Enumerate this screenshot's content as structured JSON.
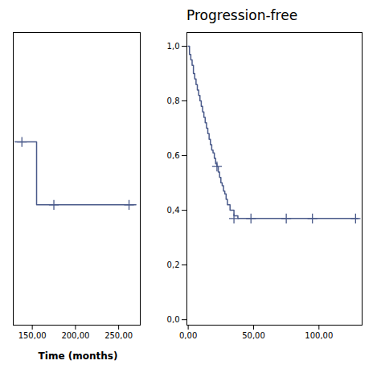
{
  "chart_data": [
    {
      "type": "line",
      "xlabel": "Time (months)",
      "xlim": [
        128,
        275
      ],
      "ylim": [
        -0.02,
        1.05
      ],
      "xticks": [
        {
          "value": 150,
          "label": "150,00"
        },
        {
          "value": 200,
          "label": "200,00"
        },
        {
          "value": 250,
          "label": "250,00"
        }
      ],
      "tick_labels": "x",
      "series": [
        {
          "type": "step",
          "color": "#4a5a8a",
          "x": [
            130,
            155,
            155,
            270
          ],
          "values": [
            0.65,
            0.65,
            0.42,
            0.42
          ]
        },
        {
          "type": "scatter",
          "marker": "plus",
          "color": "#4a5a8a",
          "x": [
            138,
            175,
            262
          ],
          "values": [
            0.65,
            0.42,
            0.42
          ]
        }
      ]
    },
    {
      "type": "line",
      "title": "Progression-free",
      "xlim": [
        -1,
        133
      ],
      "ylim": [
        -0.02,
        1.05
      ],
      "xticks": [
        {
          "value": 0,
          "label": "0,00"
        },
        {
          "value": 50,
          "label": "50,00"
        },
        {
          "value": 100,
          "label": "100,00"
        }
      ],
      "yticks": [
        {
          "value": 0.0,
          "label": "0,0"
        },
        {
          "value": 0.2,
          "label": "0,2"
        },
        {
          "value": 0.4,
          "label": "0,4"
        },
        {
          "value": 0.6,
          "label": "0,6"
        },
        {
          "value": 0.8,
          "label": "0,8"
        },
        {
          "value": 1.0,
          "label": "1,0"
        }
      ],
      "series": [
        {
          "type": "step",
          "color": "#4a5a8a",
          "x": [
            0,
            1,
            2,
            3,
            4,
            5,
            6,
            7,
            8,
            9,
            10,
            11,
            12,
            13,
            14,
            15,
            16,
            17,
            18,
            19,
            20,
            21,
            22,
            23,
            24,
            25,
            26,
            27,
            28,
            29,
            30,
            32,
            35,
            38,
            40,
            43,
            45,
            130
          ],
          "values": [
            1.0,
            0.97,
            0.95,
            0.93,
            0.9,
            0.88,
            0.86,
            0.84,
            0.82,
            0.8,
            0.78,
            0.76,
            0.74,
            0.72,
            0.7,
            0.68,
            0.66,
            0.64,
            0.62,
            0.61,
            0.59,
            0.57,
            0.56,
            0.54,
            0.52,
            0.5,
            0.49,
            0.47,
            0.46,
            0.44,
            0.42,
            0.4,
            0.38,
            0.37,
            0.37,
            0.37,
            0.37,
            0.37
          ]
        },
        {
          "type": "scatter",
          "marker": "plus",
          "color": "#4a5a8a",
          "x": [
            22,
            35,
            48,
            75,
            95,
            128
          ],
          "values": [
            0.56,
            0.37,
            0.37,
            0.37,
            0.37,
            0.37
          ]
        }
      ]
    }
  ]
}
